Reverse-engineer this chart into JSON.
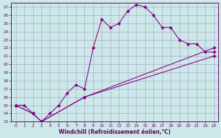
{
  "xlabel": "Windchill (Refroidissement éolien,°C)",
  "bg_color": "#cce8e8",
  "grid_color": "#aaaacc",
  "line_color": "#880088",
  "xlim": [
    -0.5,
    23.5
  ],
  "ylim": [
    13,
    27.5
  ],
  "xticks": [
    0,
    1,
    2,
    3,
    4,
    5,
    6,
    7,
    8,
    9,
    10,
    11,
    12,
    13,
    14,
    15,
    16,
    17,
    18,
    19,
    20,
    21,
    22,
    23
  ],
  "yticks": [
    13,
    14,
    15,
    16,
    17,
    18,
    19,
    20,
    21,
    22,
    23,
    24,
    25,
    26,
    27
  ],
  "line1_x": [
    0,
    1,
    2,
    3,
    4,
    5,
    6,
    7,
    8,
    9,
    10,
    11,
    12,
    13,
    14,
    15,
    16,
    17,
    18,
    19,
    20,
    21,
    22,
    23
  ],
  "line1_y": [
    15,
    15,
    14,
    13,
    14,
    15,
    16.5,
    17.5,
    17,
    22,
    25.5,
    24.5,
    25,
    26.5,
    27.3,
    27,
    26,
    24.5,
    24.5,
    23,
    22.5,
    22.5,
    21.5,
    21.5
  ],
  "line2_x": [
    0,
    2,
    3,
    8,
    23
  ],
  "line2_y": [
    15,
    14,
    13,
    16,
    22
  ],
  "line3_x": [
    0,
    2,
    3,
    8,
    23
  ],
  "line3_y": [
    15,
    14,
    13,
    16,
    21
  ]
}
